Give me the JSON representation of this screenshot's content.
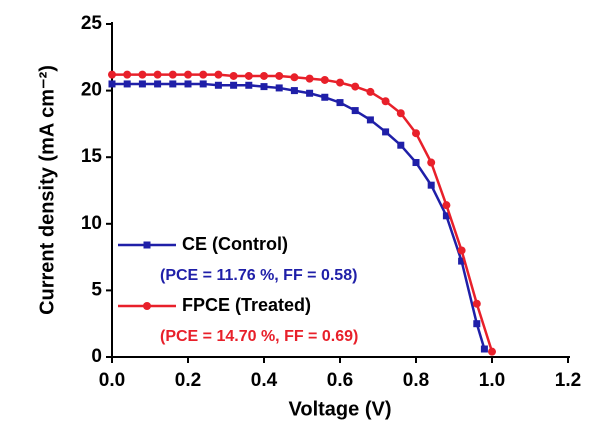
{
  "chart_data": {
    "type": "line",
    "x_label": "Voltage (V)",
    "y_label": "Current density (mA cm⁻²)",
    "xlim": [
      0,
      1.2
    ],
    "xticks": [
      {
        "value": 0,
        "label": "0.0"
      },
      0.2,
      0.4,
      0.6,
      0.8,
      {
        "value": 1,
        "label": "1.0"
      },
      1.2
    ],
    "ylim": [
      0,
      25
    ],
    "yticks": [
      0,
      5,
      10,
      15,
      20,
      25
    ],
    "series": [
      {
        "name": "CE (Control)",
        "color": "#1f1fa8",
        "marker": "square",
        "note": "(PCE = 11.76 %, FF = 0.58)",
        "x": [
          0,
          0.04,
          0.08,
          0.12,
          0.16,
          0.2,
          0.24,
          0.28,
          0.32,
          0.36,
          0.4,
          0.44,
          0.48,
          0.52,
          0.56,
          0.6,
          0.64,
          0.68,
          0.72,
          0.76,
          0.8,
          0.84,
          0.88,
          0.92,
          0.96,
          0.98
        ],
        "values": [
          20.5,
          20.5,
          20.5,
          20.5,
          20.5,
          20.5,
          20.5,
          20.4,
          20.4,
          20.4,
          20.3,
          20.2,
          20.0,
          19.8,
          19.5,
          19.1,
          18.5,
          17.8,
          16.9,
          15.9,
          14.6,
          12.9,
          10.6,
          7.2,
          2.5,
          0.6
        ]
      },
      {
        "name": "FPCE (Treated)",
        "color": "#e8202a",
        "marker": "circle",
        "note": "(PCE = 14.70 %, FF = 0.69)",
        "x": [
          0,
          0.04,
          0.08,
          0.12,
          0.16,
          0.2,
          0.24,
          0.28,
          0.32,
          0.36,
          0.4,
          0.44,
          0.48,
          0.52,
          0.56,
          0.6,
          0.64,
          0.68,
          0.72,
          0.76,
          0.8,
          0.84,
          0.88,
          0.92,
          0.96,
          1.0
        ],
        "values": [
          21.2,
          21.2,
          21.2,
          21.2,
          21.2,
          21.2,
          21.2,
          21.2,
          21.1,
          21.1,
          21.1,
          21.1,
          21.0,
          20.9,
          20.8,
          20.6,
          20.3,
          19.9,
          19.2,
          18.3,
          16.8,
          14.6,
          11.4,
          8.0,
          4.0,
          0.4
        ]
      }
    ]
  }
}
